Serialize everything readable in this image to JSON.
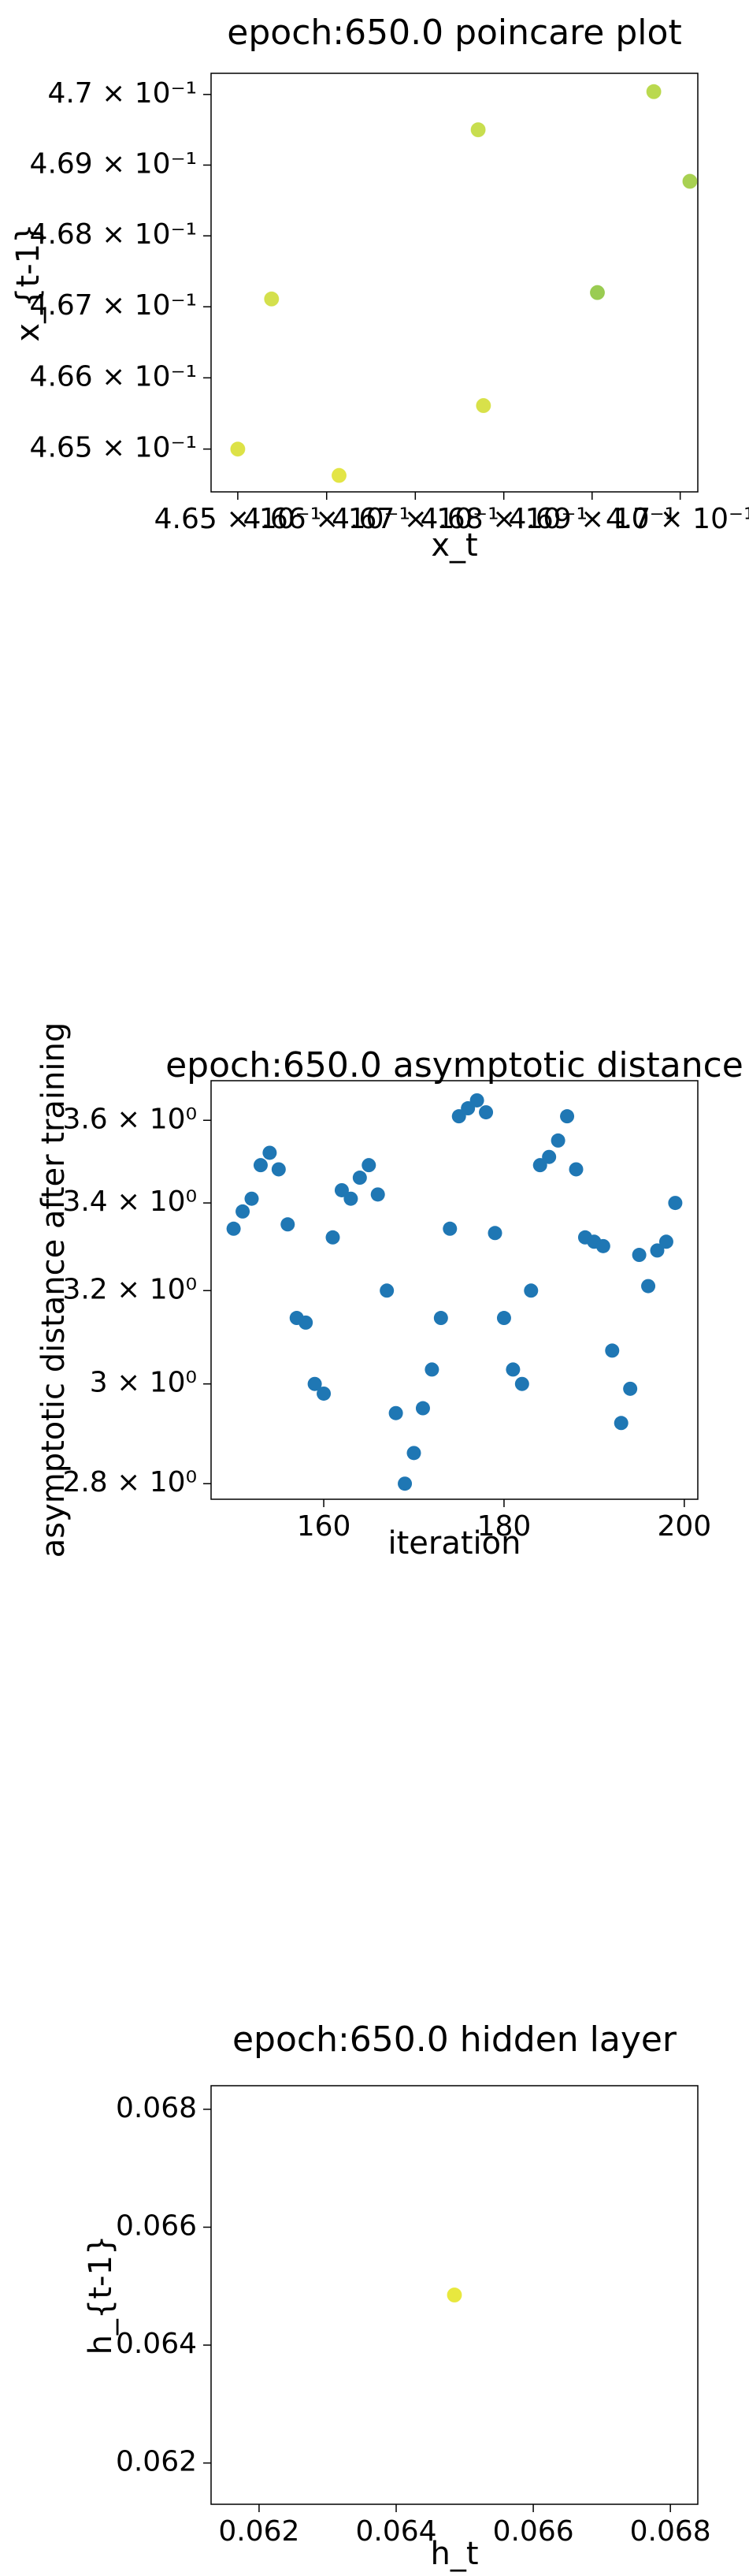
{
  "chart_data": [
    {
      "type": "scatter",
      "title": "epoch:650.0 poincare plot",
      "xlabel": "x_t",
      "ylabel": "x_{t-1}",
      "yscale": "log",
      "xscale": "log",
      "xlim": [
        0.4647,
        0.4702
      ],
      "ylim": [
        0.4644,
        0.4703
      ],
      "xticks": [
        0.465,
        0.466,
        0.467,
        0.468,
        0.469,
        0.47
      ],
      "xtick_labels": [
        "4.65 × 10⁻¹",
        "4.66 × 10⁻¹",
        "4.67 × 10⁻¹",
        "4.68 × 10⁻¹",
        "4.69 × 10⁻¹",
        "4.7 × 10⁻¹"
      ],
      "yticks": [
        0.465,
        0.466,
        0.467,
        0.468,
        0.469,
        0.47
      ],
      "ytick_labels": [
        "4.65 × 10⁻¹",
        "4.66 × 10⁻¹",
        "4.67 × 10⁻¹",
        "4.68 × 10⁻¹",
        "4.69 × 10⁻¹",
        "4.7 × 10⁻¹"
      ],
      "points": [
        {
          "x": 0.465,
          "y": 0.465,
          "color": "#d9df33"
        },
        {
          "x": 0.46538,
          "y": 0.46711,
          "color": "#cfdd3a"
        },
        {
          "x": 0.46614,
          "y": 0.46463,
          "color": "#e0e233"
        },
        {
          "x": 0.46771,
          "y": 0.4695,
          "color": "#c2da3c"
        },
        {
          "x": 0.46777,
          "y": 0.46561,
          "color": "#d4de36"
        },
        {
          "x": 0.46906,
          "y": 0.4672,
          "color": "#8fc63f"
        },
        {
          "x": 0.4697,
          "y": 0.47004,
          "color": "#b3d53c"
        },
        {
          "x": 0.47011,
          "y": 0.46877,
          "color": "#9fcc3f"
        }
      ]
    },
    {
      "type": "scatter",
      "title": "epoch:650.0 asymptotic distance",
      "xlabel": "iteration",
      "ylabel": "asymptotic distance after training",
      "yscale": "log",
      "xlim": [
        147.5,
        201.5
      ],
      "ylim": [
        2.77,
        3.7
      ],
      "xticks": [
        160,
        180,
        200
      ],
      "xtick_labels": [
        "160",
        "180",
        "200"
      ],
      "yticks": [
        2.8,
        3.0,
        3.2,
        3.4,
        3.6
      ],
      "ytick_labels": [
        "2.8 × 10⁰",
        "3 × 10⁰",
        "3.2 × 10⁰",
        "3.4 × 10⁰",
        "3.6 × 10⁰"
      ],
      "color": "#1f77b4",
      "x": [
        150,
        151,
        152,
        153,
        154,
        155,
        156,
        157,
        158,
        159,
        160,
        161,
        162,
        163,
        164,
        165,
        166,
        167,
        168,
        169,
        170,
        171,
        172,
        173,
        174,
        175,
        176,
        177,
        178,
        179,
        180,
        181,
        182,
        183,
        184,
        185,
        186,
        187,
        188,
        189,
        190,
        191,
        192,
        193,
        194,
        195,
        196,
        197,
        198,
        199
      ],
      "y": [
        3.34,
        3.38,
        3.41,
        3.49,
        3.52,
        3.48,
        3.35,
        3.14,
        3.13,
        3.0,
        2.98,
        3.32,
        3.43,
        3.41,
        3.46,
        3.49,
        3.42,
        3.2,
        2.94,
        2.8,
        2.86,
        2.95,
        3.03,
        3.14,
        3.34,
        3.61,
        3.63,
        3.65,
        3.62,
        3.33,
        3.14,
        3.03,
        3.0,
        3.2,
        3.49,
        3.51,
        3.55,
        3.61,
        3.48,
        3.32,
        3.31,
        3.3,
        3.07,
        2.92,
        2.99,
        3.28,
        3.21,
        3.29,
        3.31,
        3.4
      ]
    },
    {
      "type": "scatter",
      "title": "epoch:650.0 hidden layer",
      "xlabel": "h_t",
      "ylabel": "h_{t-1}",
      "xlim": [
        0.0613,
        0.0684
      ],
      "ylim": [
        0.0613,
        0.0684
      ],
      "xticks": [
        0.062,
        0.064,
        0.066,
        0.068
      ],
      "xtick_labels": [
        "0.062",
        "0.064",
        "0.066",
        "0.068"
      ],
      "yticks": [
        0.062,
        0.064,
        0.066,
        0.068
      ],
      "ytick_labels": [
        "0.062",
        "0.064",
        "0.066",
        "0.068"
      ],
      "points": [
        {
          "x": 0.06485,
          "y": 0.06485,
          "color": "#e6e52a"
        }
      ]
    }
  ]
}
